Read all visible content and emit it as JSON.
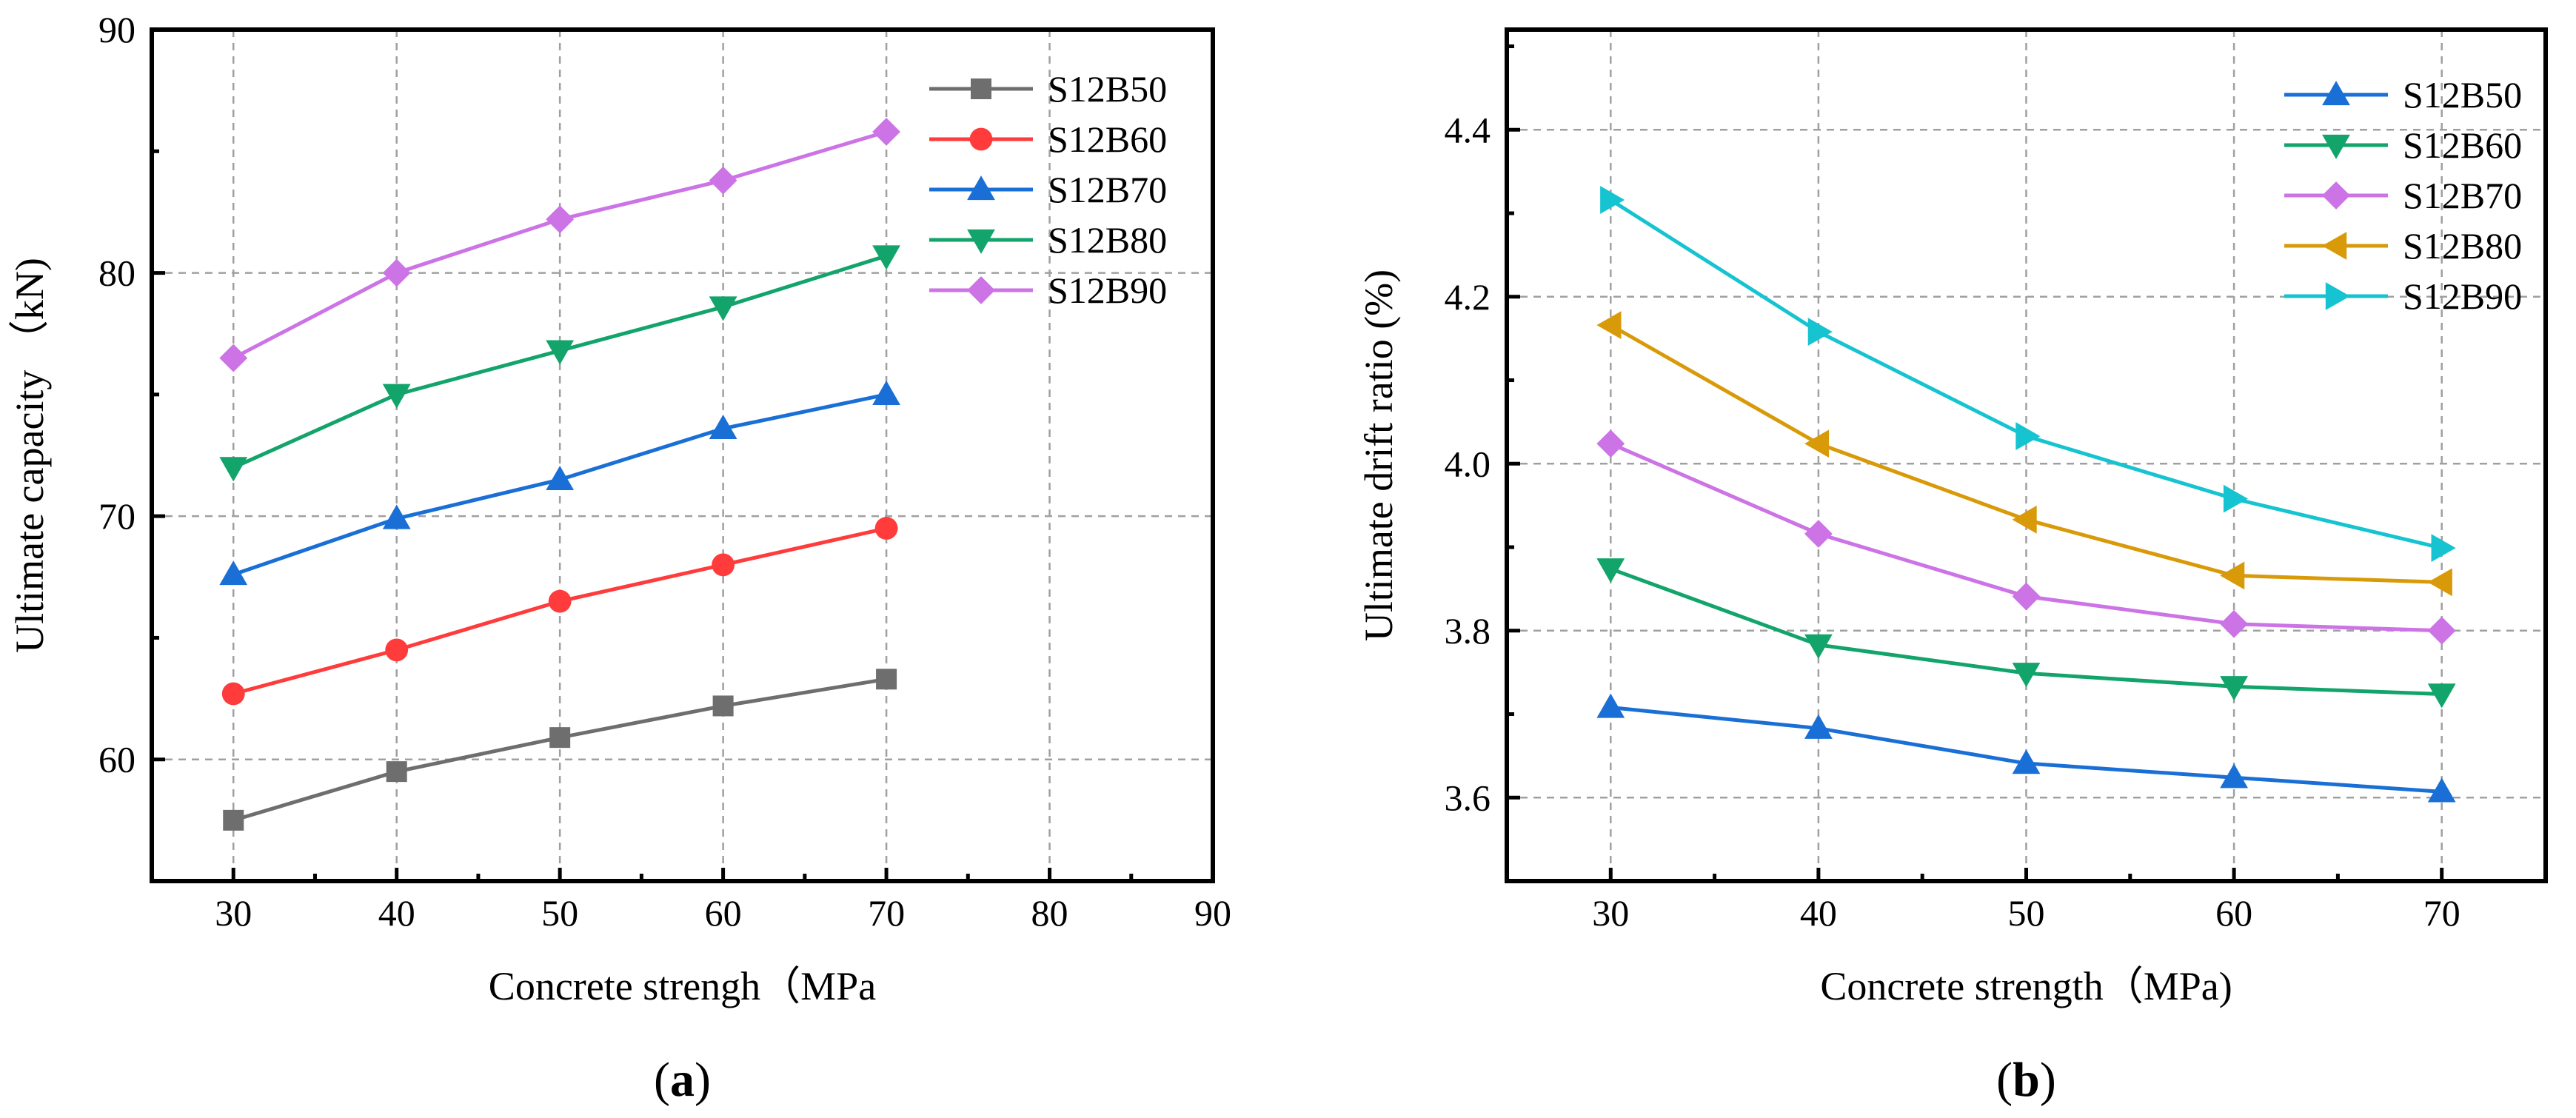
{
  "chart_data": [
    {
      "type": "line",
      "panel_label": "a",
      "xlabel": "Concrete strengh（MPa",
      "ylabel": "Ultimate capacity （kN)",
      "xlim": [
        25,
        90
      ],
      "ylim": [
        55,
        90
      ],
      "xticks": [
        30,
        40,
        50,
        60,
        70,
        80,
        90
      ],
      "yticks": [
        60,
        70,
        80,
        90
      ],
      "grid": true,
      "legend_position": "top-right",
      "x": [
        30,
        40,
        50,
        60,
        70
      ],
      "series": [
        {
          "name": "S12B50",
          "marker": "square",
          "color": "#6e6e6e",
          "values": [
            57.5,
            59.5,
            60.9,
            62.2,
            63.3
          ]
        },
        {
          "name": "S12B60",
          "marker": "circle",
          "color": "#ff3b3b",
          "values": [
            62.7,
            64.5,
            66.5,
            68.0,
            69.5
          ]
        },
        {
          "name": "S12B70",
          "marker": "triangle-up",
          "color": "#1a6fd6",
          "values": [
            67.6,
            69.9,
            71.5,
            73.6,
            75.0
          ]
        },
        {
          "name": "S12B80",
          "marker": "triangle-down",
          "color": "#12a46a",
          "values": [
            72.0,
            75.0,
            76.8,
            78.6,
            80.7
          ]
        },
        {
          "name": "S12B90",
          "marker": "diamond",
          "color": "#cc73e6",
          "values": [
            76.5,
            80.0,
            82.2,
            83.8,
            85.8
          ]
        }
      ]
    },
    {
      "type": "line",
      "panel_label": "b",
      "xlabel": "Concrete strength（MPa)",
      "ylabel": "Ultimate drift ratio (%)",
      "xlim": [
        25,
        75
      ],
      "ylim": [
        3.5,
        4.52
      ],
      "xticks": [
        30,
        40,
        50,
        60,
        70
      ],
      "yticks": [
        3.6,
        3.8,
        4.0,
        4.2,
        4.4
      ],
      "grid": true,
      "legend_position": "top-right",
      "x": [
        30,
        40,
        50,
        60,
        70
      ],
      "series": [
        {
          "name": "S12B50",
          "marker": "triangle-up",
          "color": "#1a6fd6",
          "values": [
            3.708,
            3.683,
            3.641,
            3.624,
            3.607
          ]
        },
        {
          "name": "S12B60",
          "marker": "triangle-down",
          "color": "#12a46a",
          "values": [
            3.874,
            3.783,
            3.749,
            3.733,
            3.724
          ]
        },
        {
          "name": "S12B70",
          "marker": "diamond",
          "color": "#cc73e6",
          "values": [
            4.024,
            3.916,
            3.841,
            3.808,
            3.8
          ]
        },
        {
          "name": "S12B80",
          "marker": "triangle-left",
          "color": "#d99a09",
          "values": [
            4.166,
            4.024,
            3.933,
            3.866,
            3.858
          ]
        },
        {
          "name": "S12B90",
          "marker": "triangle-right",
          "color": "#16c3d0",
          "values": [
            4.316,
            4.158,
            4.033,
            3.958,
            3.899
          ]
        }
      ]
    }
  ]
}
